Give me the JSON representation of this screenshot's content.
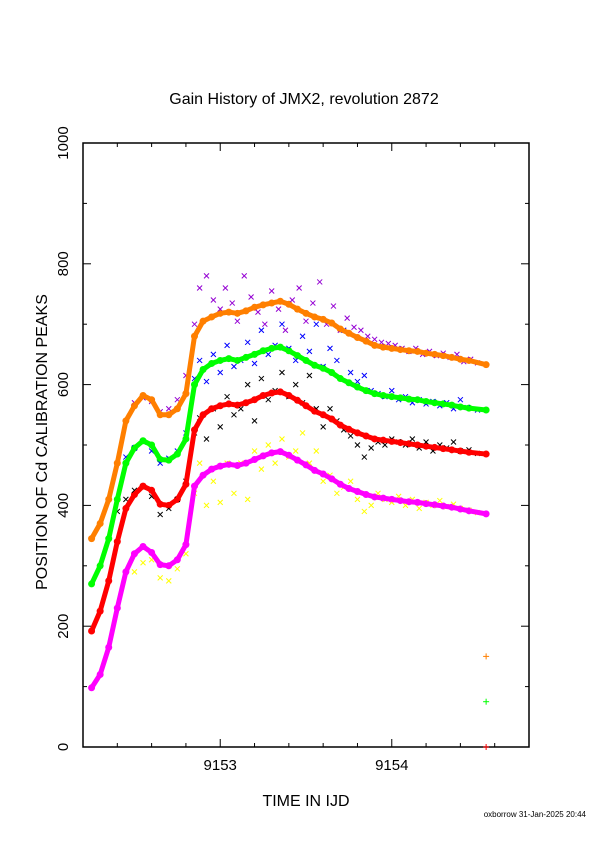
{
  "chart_data": {
    "type": "scatter",
    "title": "Gain History of JMX2, revolution 2872",
    "xlabel": "TIME IN IJD",
    "ylabel": "POSITION OF Cd CALIBRATION PEAKS",
    "xlim": [
      9152.2,
      9154.8
    ],
    "ylim": [
      0,
      1000
    ],
    "x_ticks": [
      9153,
      9154
    ],
    "y_ticks": [
      0,
      200,
      400,
      600,
      800,
      1000
    ],
    "grid": false,
    "footer": "oxborrow 31-Jan-2025 20:44",
    "series": [
      {
        "color": "#ff7f00",
        "x": [
          9152.25,
          9152.3,
          9152.35,
          9152.4,
          9152.45,
          9152.5,
          9152.55,
          9152.6,
          9152.65,
          9152.7,
          9152.75,
          9152.8,
          9152.85,
          9152.9,
          9152.95,
          9153.0,
          9153.05,
          9153.1,
          9153.15,
          9153.2,
          9153.25,
          9153.3,
          9153.35,
          9153.4,
          9153.45,
          9153.5,
          9153.55,
          9153.6,
          9153.65,
          9153.7,
          9153.75,
          9153.8,
          9153.85,
          9153.9,
          9153.95,
          9154.0,
          9154.05,
          9154.1,
          9154.15,
          9154.2,
          9154.25,
          9154.3,
          9154.35,
          9154.4,
          9154.45,
          9154.55
        ],
        "y": [
          345,
          370,
          410,
          470,
          540,
          565,
          582,
          575,
          550,
          550,
          560,
          585,
          680,
          705,
          712,
          718,
          720,
          718,
          722,
          728,
          732,
          735,
          738,
          733,
          725,
          718,
          712,
          708,
          702,
          692,
          685,
          678,
          672,
          665,
          662,
          660,
          658,
          656,
          655,
          652,
          650,
          648,
          645,
          642,
          640,
          633
        ]
      },
      {
        "color": "#00ff00",
        "x": [
          9152.25,
          9152.3,
          9152.35,
          9152.4,
          9152.45,
          9152.5,
          9152.55,
          9152.6,
          9152.65,
          9152.7,
          9152.75,
          9152.8,
          9152.85,
          9152.9,
          9152.95,
          9153.0,
          9153.05,
          9153.1,
          9153.15,
          9153.2,
          9153.25,
          9153.3,
          9153.35,
          9153.4,
          9153.45,
          9153.5,
          9153.55,
          9153.6,
          9153.65,
          9153.7,
          9153.75,
          9153.8,
          9153.85,
          9153.9,
          9153.95,
          9154.0,
          9154.05,
          9154.1,
          9154.15,
          9154.2,
          9154.25,
          9154.3,
          9154.35,
          9154.4,
          9154.45,
          9154.55
        ],
        "y": [
          270,
          300,
          345,
          410,
          470,
          495,
          507,
          500,
          476,
          475,
          485,
          510,
          600,
          625,
          635,
          640,
          643,
          640,
          645,
          650,
          656,
          660,
          662,
          656,
          648,
          640,
          632,
          627,
          620,
          610,
          603,
          596,
          590,
          585,
          582,
          580,
          578,
          576,
          575,
          572,
          570,
          568,
          566,
          563,
          561,
          558
        ]
      },
      {
        "color": "#ff0000",
        "x": [
          9152.25,
          9152.3,
          9152.35,
          9152.4,
          9152.45,
          9152.5,
          9152.55,
          9152.6,
          9152.65,
          9152.7,
          9152.75,
          9152.8,
          9152.85,
          9152.9,
          9152.95,
          9153.0,
          9153.05,
          9153.1,
          9153.15,
          9153.2,
          9153.25,
          9153.3,
          9153.35,
          9153.4,
          9153.45,
          9153.5,
          9153.55,
          9153.6,
          9153.65,
          9153.7,
          9153.75,
          9153.8,
          9153.85,
          9153.9,
          9153.95,
          9154.0,
          9154.05,
          9154.1,
          9154.15,
          9154.2,
          9154.25,
          9154.3,
          9154.35,
          9154.4,
          9154.45,
          9154.55
        ],
        "y": [
          192,
          225,
          275,
          340,
          395,
          418,
          432,
          425,
          402,
          400,
          410,
          435,
          525,
          550,
          560,
          565,
          568,
          566,
          570,
          575,
          582,
          586,
          588,
          582,
          574,
          565,
          556,
          550,
          543,
          533,
          526,
          520,
          515,
          510,
          508,
          506,
          504,
          502,
          500,
          498,
          496,
          494,
          492,
          490,
          488,
          485
        ]
      },
      {
        "color": "#ff00ff",
        "x": [
          9152.25,
          9152.3,
          9152.35,
          9152.4,
          9152.45,
          9152.5,
          9152.55,
          9152.6,
          9152.65,
          9152.7,
          9152.75,
          9152.8,
          9152.85,
          9152.9,
          9152.95,
          9153.0,
          9153.05,
          9153.1,
          9153.15,
          9153.2,
          9153.25,
          9153.3,
          9153.35,
          9153.4,
          9153.45,
          9153.5,
          9153.55,
          9153.6,
          9153.65,
          9153.7,
          9153.75,
          9153.8,
          9153.85,
          9153.9,
          9153.95,
          9154.0,
          9154.05,
          9154.1,
          9154.15,
          9154.2,
          9154.25,
          9154.3,
          9154.35,
          9154.4,
          9154.45,
          9154.55
        ],
        "y": [
          98,
          120,
          165,
          230,
          290,
          320,
          332,
          322,
          302,
          300,
          310,
          335,
          432,
          450,
          460,
          465,
          468,
          466,
          470,
          476,
          482,
          487,
          489,
          483,
          475,
          467,
          458,
          452,
          444,
          435,
          428,
          423,
          418,
          414,
          412,
          410,
          408,
          406,
          405,
          403,
          401,
          399,
          397,
          394,
          391,
          386
        ]
      },
      {
        "color": "#9400d3",
        "x": [
          9152.5,
          9152.55,
          9152.6,
          9152.65,
          9152.7,
          9152.75,
          9152.8,
          9152.85,
          9152.88,
          9152.92,
          9152.96,
          9153.0,
          9153.03,
          9153.07,
          9153.1,
          9153.14,
          9153.18,
          9153.22,
          9153.26,
          9153.3,
          9153.34,
          9153.38,
          9153.42,
          9153.46,
          9153.5,
          9153.54,
          9153.58,
          9153.62,
          9153.66,
          9153.7,
          9153.74,
          9153.78,
          9153.82,
          9153.86,
          9153.9,
          9153.94,
          9153.98,
          9154.02,
          9154.06,
          9154.1,
          9154.14,
          9154.18,
          9154.22,
          9154.26,
          9154.3,
          9154.34,
          9154.38,
          9154.42,
          9154.46,
          9154.5
        ],
        "y": [
          570,
          578,
          572,
          555,
          560,
          575,
          615,
          700,
          760,
          780,
          740,
          725,
          760,
          735,
          705,
          780,
          745,
          720,
          700,
          755,
          725,
          690,
          740,
          760,
          705,
          735,
          770,
          700,
          730,
          690,
          710,
          695,
          690,
          680,
          675,
          670,
          668,
          665,
          660,
          655,
          660,
          650,
          655,
          648,
          652,
          645,
          650,
          638,
          642,
          636
        ]
      },
      {
        "color": "#0000ff",
        "x": [
          9152.45,
          9152.5,
          9152.55,
          9152.6,
          9152.65,
          9152.7,
          9152.75,
          9152.8,
          9152.85,
          9152.88,
          9152.92,
          9152.96,
          9153.0,
          9153.04,
          9153.08,
          9153.12,
          9153.16,
          9153.2,
          9153.24,
          9153.28,
          9153.32,
          9153.36,
          9153.4,
          9153.44,
          9153.48,
          9153.52,
          9153.56,
          9153.6,
          9153.64,
          9153.68,
          9153.72,
          9153.76,
          9153.8,
          9153.84,
          9153.88,
          9153.92,
          9153.96,
          9154.0,
          9154.04,
          9154.08,
          9154.12,
          9154.16,
          9154.2,
          9154.24,
          9154.28,
          9154.32,
          9154.36,
          9154.4,
          9154.44,
          9154.5
        ],
        "y": [
          480,
          495,
          505,
          490,
          470,
          478,
          490,
          520,
          610,
          640,
          605,
          650,
          620,
          665,
          630,
          640,
          670,
          635,
          690,
          650,
          665,
          700,
          660,
          640,
          680,
          655,
          700,
          630,
          660,
          640,
          690,
          620,
          605,
          615,
          590,
          585,
          580,
          590,
          575,
          580,
          570,
          575,
          568,
          572,
          565,
          570,
          560,
          575,
          562,
          558
        ]
      },
      {
        "color": "#000000",
        "x": [
          9152.4,
          9152.45,
          9152.5,
          9152.55,
          9152.6,
          9152.65,
          9152.7,
          9152.75,
          9152.8,
          9152.85,
          9152.88,
          9152.92,
          9152.96,
          9153.0,
          9153.04,
          9153.08,
          9153.12,
          9153.16,
          9153.2,
          9153.24,
          9153.28,
          9153.32,
          9153.36,
          9153.4,
          9153.44,
          9153.48,
          9153.52,
          9153.56,
          9153.6,
          9153.64,
          9153.68,
          9153.72,
          9153.76,
          9153.8,
          9153.84,
          9153.88,
          9153.92,
          9153.96,
          9154.0,
          9154.04,
          9154.08,
          9154.12,
          9154.16,
          9154.2,
          9154.24,
          9154.28,
          9154.32,
          9154.36,
          9154.4,
          9154.45,
          9154.5
        ],
        "y": [
          390,
          410,
          425,
          430,
          415,
          385,
          395,
          410,
          440,
          520,
          545,
          510,
          560,
          530,
          580,
          550,
          560,
          600,
          540,
          610,
          575,
          590,
          620,
          580,
          600,
          570,
          615,
          560,
          530,
          560,
          540,
          525,
          515,
          500,
          480,
          495,
          505,
          500,
          510,
          505,
          500,
          510,
          495,
          505,
          490,
          500,
          495,
          505,
          490,
          492,
          486
        ]
      },
      {
        "color": "#ffff00",
        "x": [
          9152.5,
          9152.55,
          9152.6,
          9152.65,
          9152.7,
          9152.75,
          9152.8,
          9152.85,
          9152.88,
          9152.92,
          9152.96,
          9153.0,
          9153.04,
          9153.08,
          9153.12,
          9153.16,
          9153.2,
          9153.24,
          9153.28,
          9153.32,
          9153.36,
          9153.4,
          9153.44,
          9153.48,
          9153.52,
          9153.56,
          9153.6,
          9153.64,
          9153.68,
          9153.72,
          9153.76,
          9153.8,
          9153.84,
          9153.88,
          9153.92,
          9153.96,
          9154.0,
          9154.04,
          9154.08,
          9154.12,
          9154.16,
          9154.2,
          9154.24,
          9154.28,
          9154.32,
          9154.36,
          9154.4,
          9154.45,
          9154.5
        ],
        "y": [
          290,
          305,
          310,
          280,
          275,
          295,
          320,
          420,
          470,
          400,
          440,
          405,
          470,
          420,
          470,
          410,
          490,
          460,
          500,
          470,
          510,
          480,
          490,
          520,
          470,
          490,
          440,
          450,
          420,
          430,
          440,
          410,
          390,
          400,
          420,
          410,
          405,
          415,
          400,
          410,
          395,
          405,
          400,
          408,
          398,
          402,
          395,
          392,
          388
        ]
      },
      {
        "color": "#ff7f00",
        "x": [
          9154.55
        ],
        "y": [
          150
        ]
      },
      {
        "color": "#00ff00",
        "x": [
          9154.55
        ],
        "y": [
          75
        ]
      },
      {
        "color": "#ff0000",
        "x": [
          9154.55
        ],
        "y": [
          0
        ]
      }
    ]
  }
}
